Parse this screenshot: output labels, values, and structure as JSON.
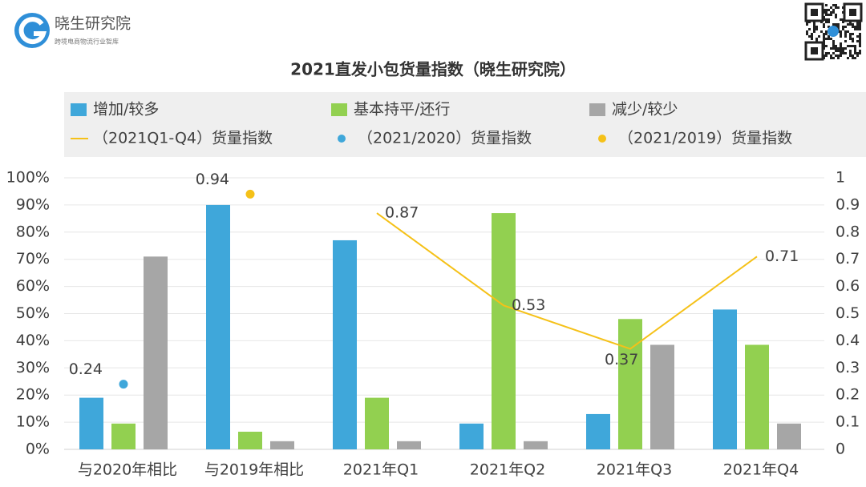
{
  "logo": {
    "name": "晓生研究院",
    "tagline": "跨境电商物流行业智库"
  },
  "chart_data": {
    "type": "bar",
    "title": "2021直发小包货量指数（晓生研究院）",
    "categories": [
      "与2020年相比",
      "与2019年相比",
      "2021年Q1",
      "2021年Q2",
      "2021年Q3",
      "2021年Q4"
    ],
    "series": [
      {
        "name": "增加/较多",
        "type": "bar",
        "color": "#3fa7da",
        "values": [
          19,
          90,
          77,
          9.5,
          13,
          51.5
        ]
      },
      {
        "name": "基本持平/还行",
        "type": "bar",
        "color": "#92d050",
        "values": [
          9.5,
          6.5,
          19,
          87,
          48,
          38.5
        ]
      },
      {
        "name": "减少/较少",
        "type": "bar",
        "color": "#a6a6a6",
        "values": [
          71,
          3,
          3,
          3,
          38.5,
          9.5
        ]
      },
      {
        "name": "（2021Q1-Q4）货量指数",
        "type": "line",
        "axis": "y2",
        "color": "#f5c118",
        "values": [
          null,
          null,
          0.87,
          0.53,
          0.37,
          0.71
        ]
      },
      {
        "name": "（2021/2020）货量指数",
        "type": "scatter",
        "axis": "y2",
        "color": "#3fa7da",
        "values": [
          0.24,
          null,
          null,
          null,
          null,
          null
        ]
      },
      {
        "name": "（2021/2019）货量指数",
        "type": "scatter",
        "axis": "y2",
        "color": "#f5c118",
        "values": [
          null,
          0.94,
          null,
          null,
          null,
          null
        ]
      }
    ],
    "ylim": [
      0,
      100
    ],
    "yticks": [
      {
        "value": 0,
        "label": "0%"
      },
      {
        "value": 10,
        "label": "10%"
      },
      {
        "value": 20,
        "label": "20%"
      },
      {
        "value": 30,
        "label": "30%"
      },
      {
        "value": 40,
        "label": "40%"
      },
      {
        "value": 50,
        "label": "50%"
      },
      {
        "value": 60,
        "label": "60%"
      },
      {
        "value": 70,
        "label": "70%"
      },
      {
        "value": 80,
        "label": "80%"
      },
      {
        "value": 90,
        "label": "90%"
      },
      {
        "value": 100,
        "label": "100%"
      }
    ],
    "y2lim": [
      0,
      1
    ],
    "y2ticks": [
      0,
      0.1,
      0.2,
      0.3,
      0.4,
      0.5,
      0.6,
      0.7,
      0.8,
      0.9,
      1
    ],
    "grid": true
  }
}
